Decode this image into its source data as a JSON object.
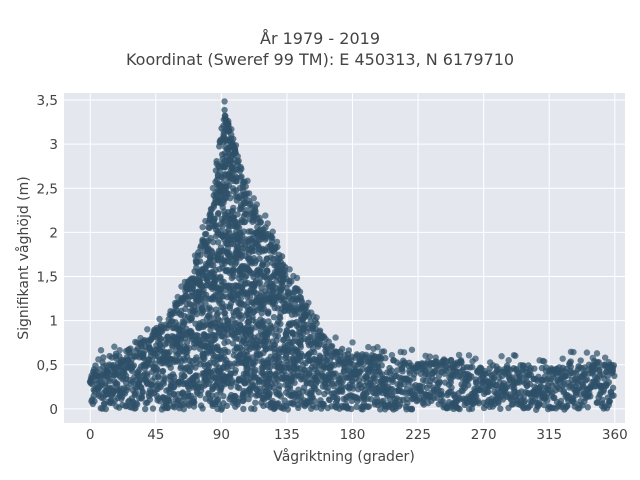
{
  "chart_data": {
    "type": "scatter",
    "title_line1": "År 1979 - 2019",
    "title_line2": "Koordinat (Sweref 99 TM): E 450313, N 6179710",
    "xlabel": "Vågriktning (grader)",
    "ylabel": "Signifikant våghöjd (m)",
    "xlim": [
      -18,
      367
    ],
    "ylim": [
      -0.16,
      3.58
    ],
    "x_ticks": [
      0,
      45,
      90,
      135,
      180,
      225,
      270,
      315,
      360
    ],
    "x_tick_labels": [
      "0",
      "45",
      "90",
      "135",
      "180",
      "225",
      "270",
      "315",
      "360"
    ],
    "y_ticks": [
      0,
      0.5,
      1,
      1.5,
      2,
      2.5,
      3,
      3.5
    ],
    "y_tick_labels": [
      "0",
      "0,5",
      "1",
      "1,5",
      "2",
      "2,5",
      "3",
      "3,5"
    ],
    "grid": true,
    "background_color": "#e5e7ef",
    "marker_color": "#2e5068",
    "upper_envelope": [
      {
        "x": 0,
        "y": 0.45
      },
      {
        "x": 10,
        "y": 0.6
      },
      {
        "x": 20,
        "y": 0.65
      },
      {
        "x": 30,
        "y": 0.7
      },
      {
        "x": 40,
        "y": 0.85
      },
      {
        "x": 50,
        "y": 1.0
      },
      {
        "x": 60,
        "y": 1.25
      },
      {
        "x": 65,
        "y": 1.4
      },
      {
        "x": 70,
        "y": 1.6
      },
      {
        "x": 75,
        "y": 1.8
      },
      {
        "x": 80,
        "y": 2.1
      },
      {
        "x": 85,
        "y": 2.5
      },
      {
        "x": 88,
        "y": 3.0
      },
      {
        "x": 92,
        "y": 3.45
      },
      {
        "x": 96,
        "y": 3.2
      },
      {
        "x": 100,
        "y": 3.0
      },
      {
        "x": 105,
        "y": 2.7
      },
      {
        "x": 110,
        "y": 2.4
      },
      {
        "x": 115,
        "y": 2.2
      },
      {
        "x": 120,
        "y": 2.1
      },
      {
        "x": 125,
        "y": 1.95
      },
      {
        "x": 130,
        "y": 1.8
      },
      {
        "x": 135,
        "y": 1.55
      },
      {
        "x": 140,
        "y": 1.45
      },
      {
        "x": 145,
        "y": 1.3
      },
      {
        "x": 150,
        "y": 1.15
      },
      {
        "x": 155,
        "y": 1.0
      },
      {
        "x": 160,
        "y": 0.85
      },
      {
        "x": 165,
        "y": 0.75
      },
      {
        "x": 170,
        "y": 0.7
      },
      {
        "x": 180,
        "y": 0.65
      },
      {
        "x": 190,
        "y": 0.62
      },
      {
        "x": 200,
        "y": 0.6
      },
      {
        "x": 210,
        "y": 0.55
      },
      {
        "x": 220,
        "y": 0.55
      },
      {
        "x": 230,
        "y": 0.55
      },
      {
        "x": 240,
        "y": 0.55
      },
      {
        "x": 250,
        "y": 0.6
      },
      {
        "x": 260,
        "y": 0.5
      },
      {
        "x": 270,
        "y": 0.5
      },
      {
        "x": 280,
        "y": 0.5
      },
      {
        "x": 290,
        "y": 0.5
      },
      {
        "x": 300,
        "y": 0.5
      },
      {
        "x": 310,
        "y": 0.5
      },
      {
        "x": 320,
        "y": 0.48
      },
      {
        "x": 330,
        "y": 0.55
      },
      {
        "x": 340,
        "y": 0.55
      },
      {
        "x": 350,
        "y": 0.55
      },
      {
        "x": 360,
        "y": 0.5
      }
    ]
  }
}
